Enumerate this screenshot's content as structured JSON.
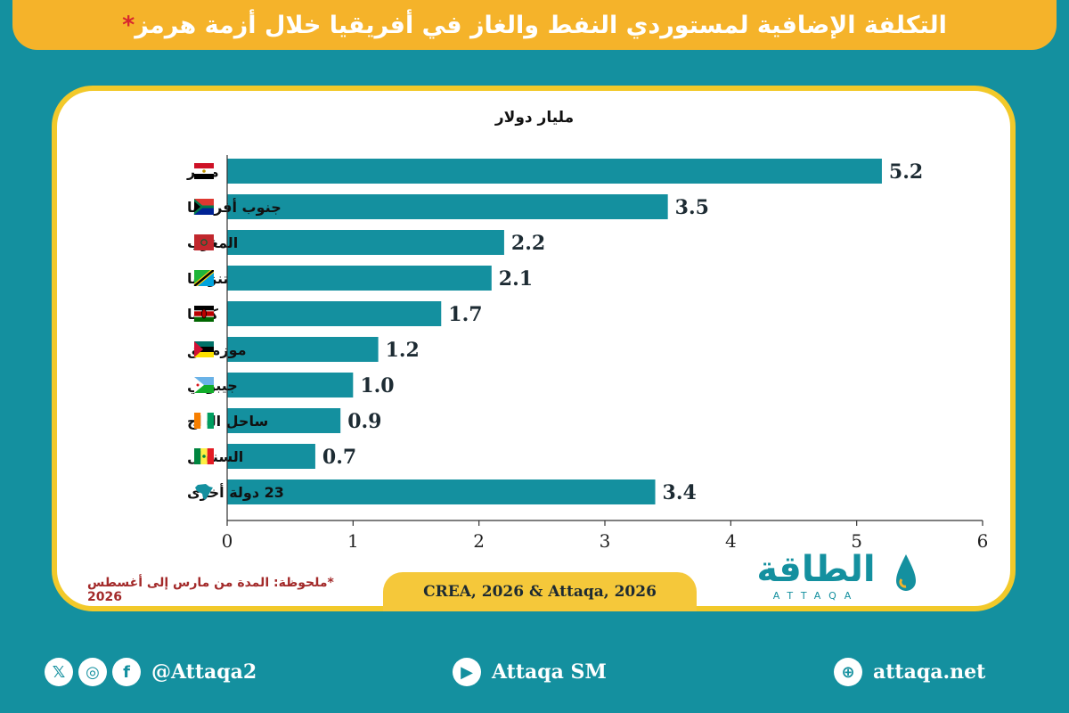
{
  "header": {
    "title": "التكلفة الإضافية لمستوردي النفط والغاز في أفريقيا خلال أزمة هرمز",
    "title_star": "*"
  },
  "chart_data": {
    "type": "bar",
    "orientation": "horizontal",
    "ylabel": "مليار دولار",
    "categories": [
      "مصر",
      "جنوب أفريقيا",
      "المغرب",
      "تنزانيا",
      "كينيا",
      "موزمبيق",
      "جيبوتي",
      "ساحل العاج",
      "السنغال",
      "23 دولة أخرى"
    ],
    "values": [
      5.2,
      3.5,
      2.2,
      2.1,
      1.7,
      1.2,
      1.0,
      0.9,
      0.7,
      3.4
    ],
    "value_labels": [
      "5.2",
      "3.5",
      "2.2",
      "2.1",
      "1.7",
      "1.2",
      "1.0",
      "0.9",
      "0.7",
      "3.4"
    ],
    "xlim": [
      0,
      6
    ],
    "xticks": [
      "0",
      "1",
      "2",
      "3",
      "4",
      "5",
      "6"
    ],
    "grid": false,
    "bar_color": "#14909f",
    "flags": [
      "egypt-flag-icon",
      "south-africa-flag-icon",
      "morocco-flag-icon",
      "tanzania-flag-icon",
      "kenya-flag-icon",
      "mozambique-flag-icon",
      "djibouti-flag-icon",
      "ivory-coast-flag-icon",
      "senegal-flag-icon",
      "africa-map-icon"
    ]
  },
  "footnote": "*ملحوظة: المدة من مارس إلى أغسطس 2026",
  "source": "CREA, 2026 & Attaqa, 2026",
  "logo": {
    "arabic": "الطاقة",
    "latin": "ATTAQA"
  },
  "footer": {
    "social_handle": "@Attaqa2",
    "youtube": "Attaqa SM",
    "website": "attaqa.net"
  },
  "colors": {
    "background": "#14909f",
    "accent": "#f5b32a",
    "bar": "#14909f",
    "card_border": "#f2c92a"
  }
}
